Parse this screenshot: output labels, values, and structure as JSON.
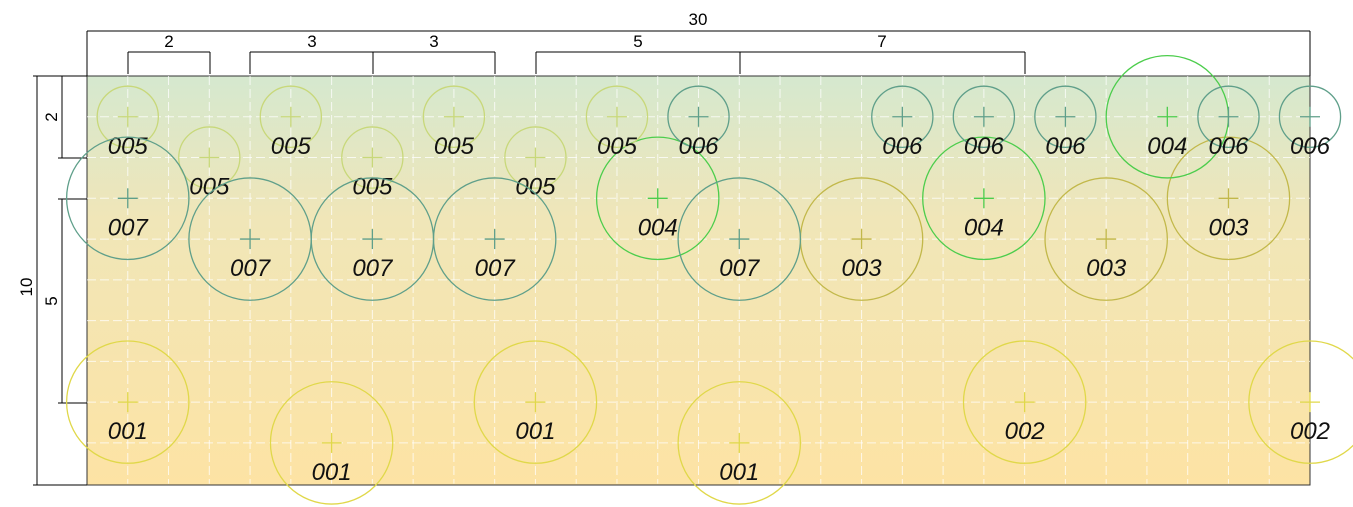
{
  "colors": {
    "top": "#d5e8cf",
    "bottom": "#fde3a4",
    "A": "#e0d84a",
    "B": "#c2b84a",
    "C": "#4ccd4c",
    "D": "#c8d87a",
    "E": "#5f9f8a",
    "F": "#5f9f8a"
  },
  "panel": {
    "width_m": 30,
    "height_m": 10
  },
  "dimensions": {
    "total_width": "30",
    "total_height": "10",
    "vertical_5": "5",
    "vertical_2": "2",
    "top_segments": [
      "2",
      "3",
      "3",
      "5",
      "7"
    ]
  },
  "holes": [
    {
      "label": "001",
      "x": 1,
      "y": 8,
      "r": 1.5,
      "c": "A"
    },
    {
      "label": "001",
      "x": 6,
      "y": 9,
      "r": 1.5,
      "c": "A"
    },
    {
      "label": "001",
      "x": 11,
      "y": 8,
      "r": 1.5,
      "c": "A"
    },
    {
      "label": "001",
      "x": 16,
      "y": 9,
      "r": 1.5,
      "c": "A"
    },
    {
      "label": "002",
      "x": 23,
      "y": 8,
      "r": 1.5,
      "c": "A"
    },
    {
      "label": "002",
      "x": 30,
      "y": 8,
      "r": 1.5,
      "c": "A"
    },
    {
      "label": "003",
      "x": 19,
      "y": 4,
      "r": 1.5,
      "c": "B"
    },
    {
      "label": "003",
      "x": 25,
      "y": 4,
      "r": 1.5,
      "c": "B"
    },
    {
      "label": "003",
      "x": 28,
      "y": 3,
      "r": 1.5,
      "c": "B"
    },
    {
      "label": "004",
      "x": 14,
      "y": 3,
      "r": 1.5,
      "c": "C"
    },
    {
      "label": "004",
      "x": 22,
      "y": 3,
      "r": 1.5,
      "c": "C"
    },
    {
      "label": "004",
      "x": 26.5,
      "y": 1,
      "r": 1.5,
      "c": "C"
    },
    {
      "label": "005",
      "x": 1,
      "y": 1,
      "r": 0.75,
      "c": "D"
    },
    {
      "label": "005",
      "x": 3,
      "y": 2,
      "r": 0.75,
      "c": "D"
    },
    {
      "label": "005",
      "x": 5,
      "y": 1,
      "r": 0.75,
      "c": "D"
    },
    {
      "label": "005",
      "x": 7,
      "y": 2,
      "r": 0.75,
      "c": "D"
    },
    {
      "label": "005",
      "x": 9,
      "y": 1,
      "r": 0.75,
      "c": "D"
    },
    {
      "label": "005",
      "x": 11,
      "y": 2,
      "r": 0.75,
      "c": "D"
    },
    {
      "label": "005",
      "x": 13,
      "y": 1,
      "r": 0.75,
      "c": "D"
    },
    {
      "label": "006",
      "x": 15,
      "y": 1,
      "r": 0.75,
      "c": "F"
    },
    {
      "label": "006",
      "x": 20,
      "y": 1,
      "r": 0.75,
      "c": "F"
    },
    {
      "label": "006",
      "x": 22,
      "y": 1,
      "r": 0.75,
      "c": "F"
    },
    {
      "label": "006",
      "x": 24,
      "y": 1,
      "r": 0.75,
      "c": "F"
    },
    {
      "label": "006",
      "x": 28,
      "y": 1,
      "r": 0.75,
      "c": "F"
    },
    {
      "label": "006",
      "x": 30,
      "y": 1,
      "r": 0.75,
      "c": "F"
    },
    {
      "label": "007",
      "x": 1,
      "y": 3,
      "r": 1.5,
      "c": "E"
    },
    {
      "label": "007",
      "x": 4,
      "y": 4,
      "r": 1.5,
      "c": "E"
    },
    {
      "label": "007",
      "x": 7,
      "y": 4,
      "r": 1.5,
      "c": "E"
    },
    {
      "label": "007",
      "x": 10,
      "y": 4,
      "r": 1.5,
      "c": "E"
    },
    {
      "label": "007",
      "x": 16,
      "y": 4,
      "r": 1.5,
      "c": "E"
    }
  ]
}
